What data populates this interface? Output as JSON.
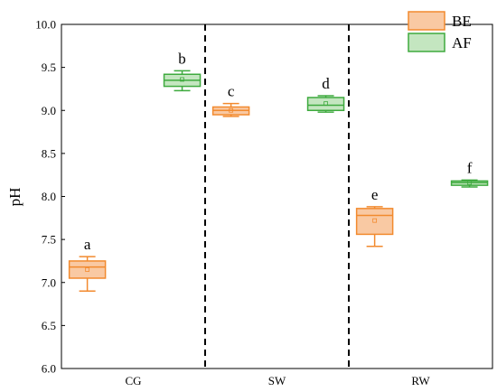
{
  "chart_data": {
    "type": "box",
    "ylabel": "pH",
    "xlabel": "",
    "ylim": [
      6.0,
      10.0
    ],
    "yticks": [
      "6.0",
      "6.5",
      "7.0",
      "7.5",
      "8.0",
      "8.5",
      "9.0",
      "9.5",
      "10.0"
    ],
    "categories": [
      "CG",
      "SW",
      "RW"
    ],
    "grid": false,
    "legend_position": "top-right",
    "group_separators": "dashed vertical lines between groups",
    "colors": {
      "BE_stroke": "#f28a2e",
      "BE_fill": "#f9c9a3",
      "AF_stroke": "#3eaa3e",
      "AF_fill": "#c4e6c0"
    },
    "series": [
      {
        "name": "BE",
        "boxes": [
          {
            "category": "CG",
            "min": 6.9,
            "q1": 7.05,
            "median": 7.18,
            "q3": 7.25,
            "max": 7.3,
            "mean": 7.15,
            "letter": "a"
          },
          {
            "category": "SW",
            "min": 8.93,
            "q1": 8.95,
            "median": 9.0,
            "q3": 9.04,
            "max": 9.08,
            "mean": 9.0,
            "letter": "c"
          },
          {
            "category": "RW",
            "min": 7.42,
            "q1": 7.56,
            "median": 7.78,
            "q3": 7.86,
            "max": 7.88,
            "mean": 7.72,
            "letter": "e"
          }
        ]
      },
      {
        "name": "AF",
        "boxes": [
          {
            "category": "CG",
            "min": 9.23,
            "q1": 9.28,
            "median": 9.35,
            "q3": 9.42,
            "max": 9.46,
            "mean": 9.36,
            "letter": "b"
          },
          {
            "category": "SW",
            "min": 8.98,
            "q1": 9.0,
            "median": 9.06,
            "q3": 9.15,
            "max": 9.17,
            "mean": 9.08,
            "letter": "d"
          },
          {
            "category": "RW",
            "min": 8.11,
            "q1": 8.13,
            "median": 8.16,
            "q3": 8.18,
            "max": 8.19,
            "mean": 8.16,
            "letter": "f"
          }
        ]
      }
    ]
  }
}
